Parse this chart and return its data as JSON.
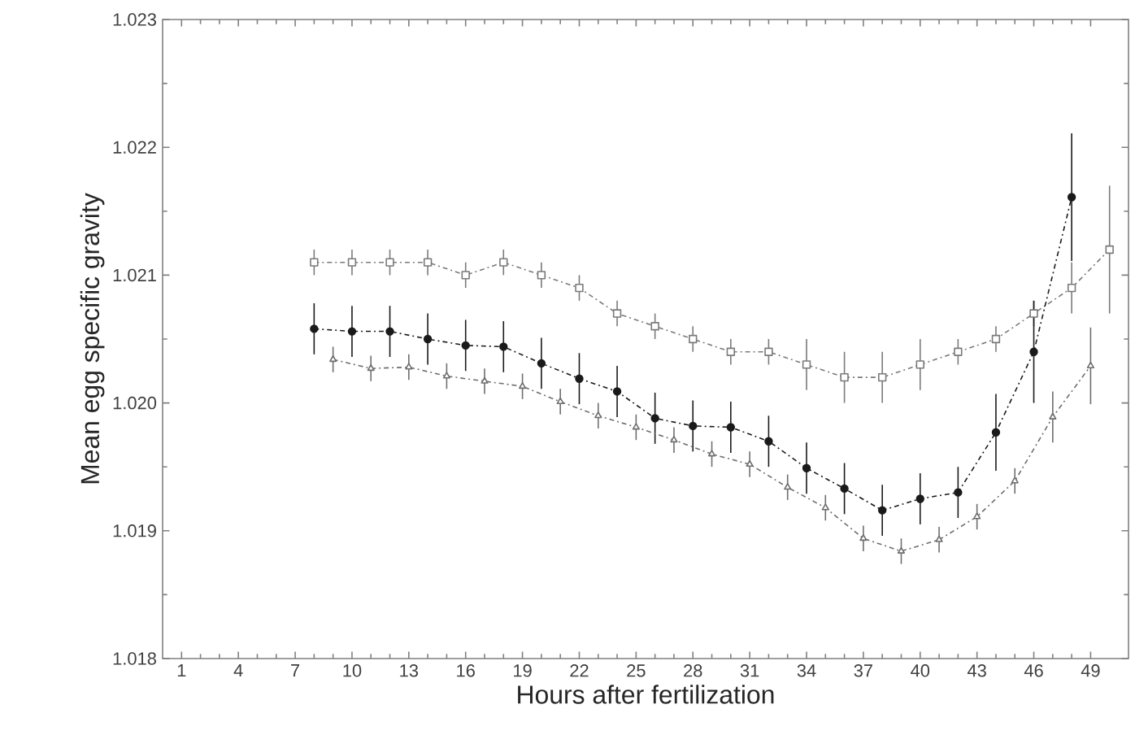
{
  "chart_data": {
    "type": "line",
    "xlabel": "Hours after fertilization",
    "ylabel": "Mean egg specific gravity",
    "xlim": [
      0,
      51
    ],
    "xticks": [
      1,
      4,
      7,
      10,
      13,
      16,
      19,
      22,
      25,
      28,
      31,
      34,
      37,
      40,
      43,
      46,
      49
    ],
    "ylim": [
      1.018,
      1.023
    ],
    "yticks": [
      1.018,
      1.019,
      {
        "value": 1.02,
        "label": "1.020"
      },
      1.021,
      1.022,
      1.023
    ],
    "line_style": "dashed",
    "series": [
      {
        "color": "#7a7a7a",
        "marker": "square",
        "x": [
          8,
          10,
          12,
          14,
          16,
          18,
          20,
          22,
          24,
          26,
          28,
          30,
          32,
          34,
          36,
          38,
          40,
          42,
          44,
          46,
          48,
          50
        ],
        "values": [
          1.0211,
          1.0211,
          1.0211,
          1.0211,
          1.021,
          1.0211,
          1.021,
          1.0209,
          1.0207,
          1.0206,
          1.0205,
          1.0204,
          1.0204,
          1.0203,
          1.0202,
          1.0202,
          1.0203,
          1.0204,
          1.0205,
          1.0207,
          1.0209,
          1.0212
        ],
        "errors": [
          0.0001,
          0.0001,
          0.0001,
          0.0001,
          0.0001,
          0.0001,
          0.0001,
          0.0001,
          0.0001,
          0.0001,
          0.0001,
          0.0001,
          0.0001,
          0.0002,
          0.0002,
          0.0002,
          0.0002,
          0.0001,
          0.0001,
          0.0001,
          0.0002,
          0.0005
        ]
      },
      {
        "color": "#1a1a1a",
        "marker": "circle",
        "x": [
          8,
          10,
          12,
          14,
          16,
          18,
          20,
          22,
          24,
          26,
          28,
          30,
          32,
          34,
          36,
          38,
          40,
          42,
          44,
          46,
          48
        ],
        "values": [
          1.02058,
          1.02056,
          1.02056,
          1.0205,
          1.02045,
          1.02044,
          1.02031,
          1.02019,
          1.02009,
          1.01988,
          1.01982,
          1.01981,
          1.0197,
          1.01949,
          1.01933,
          1.01916,
          1.01925,
          1.0193,
          1.01977,
          1.0204,
          1.02161
        ],
        "errors": [
          0.0002,
          0.0002,
          0.0002,
          0.0002,
          0.0002,
          0.0002,
          0.0002,
          0.0002,
          0.0002,
          0.0002,
          0.0002,
          0.0002,
          0.0002,
          0.0002,
          0.0002,
          0.0002,
          0.0002,
          0.0002,
          0.0003,
          0.0004,
          0.0005
        ]
      },
      {
        "color": "#6e6e6e",
        "marker": "triangle",
        "x": [
          9,
          11,
          13,
          15,
          17,
          19,
          21,
          23,
          25,
          27,
          29,
          31,
          33,
          35,
          37,
          39,
          41,
          43,
          45,
          47,
          49
        ],
        "values": [
          1.02034,
          1.02027,
          1.02028,
          1.02021,
          1.02017,
          1.02013,
          1.02001,
          1.0199,
          1.01981,
          1.01971,
          1.0196,
          1.01952,
          1.01934,
          1.01918,
          1.01894,
          1.01884,
          1.01893,
          1.01911,
          1.01939,
          1.01989,
          1.02029
        ],
        "errors": [
          0.0001,
          0.0001,
          0.0001,
          0.0001,
          0.0001,
          0.0001,
          0.0001,
          0.0001,
          0.0001,
          0.0001,
          0.0001,
          0.0001,
          0.0001,
          0.0001,
          0.0001,
          0.0001,
          0.0001,
          0.0001,
          0.0001,
          0.0002,
          0.0003
        ]
      }
    ]
  }
}
